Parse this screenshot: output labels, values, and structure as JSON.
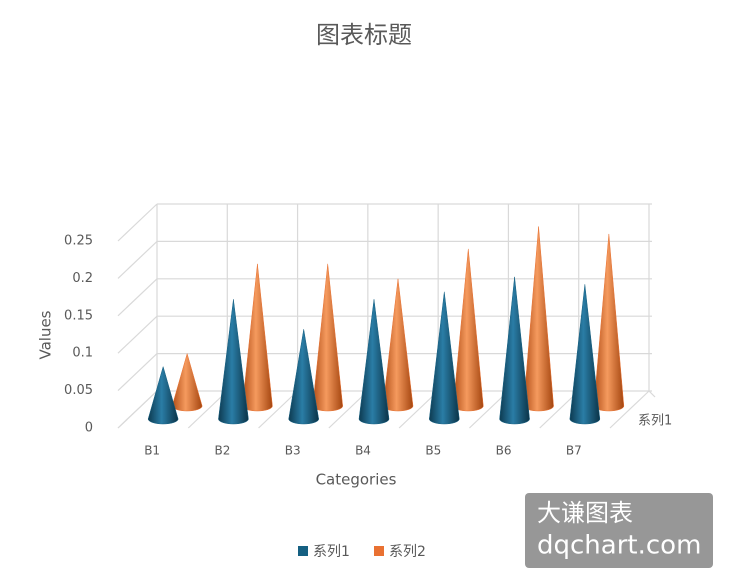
{
  "chart_data": {
    "type": "cone",
    "title": "图表标题",
    "x_label": "Categories",
    "y_label": "Values",
    "categories": [
      "B1",
      "B2",
      "B3",
      "B4",
      "B5",
      "B6",
      "B7"
    ],
    "series": [
      {
        "name": "系列1",
        "color": "#156082",
        "values": [
          0.07,
          0.16,
          0.12,
          0.16,
          0.17,
          0.19,
          0.18
        ]
      },
      {
        "name": "系列2",
        "color": "#e97132",
        "values": [
          0.07,
          0.19,
          0.19,
          0.17,
          0.21,
          0.24,
          0.23
        ]
      }
    ],
    "ylim": [
      0,
      0.25
    ],
    "yticks": [
      0,
      0.05,
      0.1,
      0.15,
      0.2,
      0.25
    ],
    "grid": true,
    "legend": "bottom",
    "watermark": [
      "大谦图表",
      "dqchart.com"
    ]
  }
}
